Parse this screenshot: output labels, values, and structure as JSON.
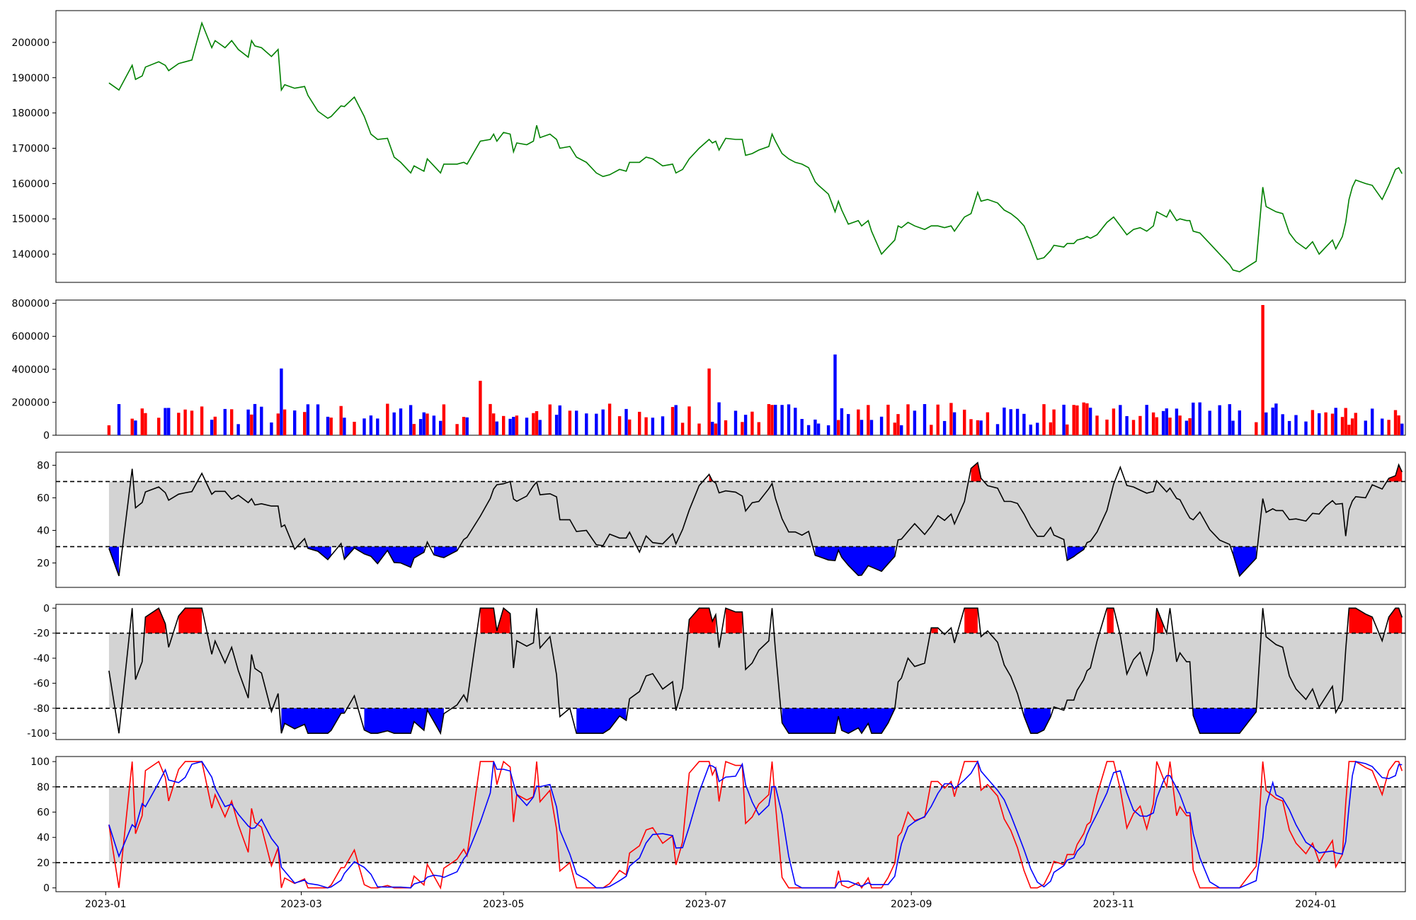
{
  "chart_data": [
    {
      "id": "price",
      "type": "line",
      "color": "#008000",
      "x_range": [
        "2022-12-17",
        "2024-01-28"
      ],
      "ylim": [
        132000,
        209000
      ],
      "yticks": [
        140000,
        150000,
        160000,
        170000,
        180000,
        190000,
        200000
      ],
      "grid": false,
      "series": [
        {
          "values": [
            [
              "2023-01-02",
              188500
            ],
            [
              "2023-01-05",
              186500
            ],
            [
              "2023-01-09",
              193500
            ],
            [
              "2023-01-10",
              189500
            ],
            [
              "2023-01-12",
              190500
            ],
            [
              "2023-01-13",
              193000
            ],
            [
              "2023-01-17",
              194500
            ],
            [
              "2023-01-19",
              193500
            ],
            [
              "2023-01-20",
              192000
            ],
            [
              "2023-01-23",
              194000
            ],
            [
              "2023-01-25",
              194500
            ],
            [
              "2023-01-27",
              195000
            ],
            [
              "2023-01-30",
              205500
            ],
            [
              "2023-02-02",
              198500
            ],
            [
              "2023-02-03",
              200500
            ],
            [
              "2023-02-06",
              198500
            ],
            [
              "2023-02-08",
              200500
            ],
            [
              "2023-02-10",
              198000
            ],
            [
              "2023-02-13",
              195800
            ],
            [
              "2023-02-14",
              200500
            ],
            [
              "2023-02-15",
              199000
            ],
            [
              "2023-02-17",
              198500
            ],
            [
              "2023-02-20",
              196000
            ],
            [
              "2023-02-22",
              198000
            ],
            [
              "2023-02-23",
              186500
            ],
            [
              "2023-02-24",
              188000
            ],
            [
              "2023-02-27",
              187000
            ],
            [
              "2023-03-02",
              187500
            ],
            [
              "2023-03-03",
              185000
            ],
            [
              "2023-03-06",
              180500
            ],
            [
              "2023-03-09",
              178500
            ],
            [
              "2023-03-10",
              179000
            ],
            [
              "2023-03-13",
              182000
            ],
            [
              "2023-03-14",
              181800
            ],
            [
              "2023-03-17",
              184500
            ],
            [
              "2023-03-20",
              179000
            ],
            [
              "2023-03-22",
              174000
            ],
            [
              "2023-03-24",
              172500
            ],
            [
              "2023-03-27",
              172800
            ],
            [
              "2023-03-29",
              167500
            ],
            [
              "2023-03-31",
              166000
            ],
            [
              "2023-04-03",
              163000
            ],
            [
              "2023-04-04",
              165000
            ],
            [
              "2023-04-06",
              164000
            ],
            [
              "2023-04-07",
              163500
            ],
            [
              "2023-04-08",
              167000
            ],
            [
              "2023-04-10",
              165000
            ],
            [
              "2023-04-12",
              163000
            ],
            [
              "2023-04-13",
              165500
            ],
            [
              "2023-04-17",
              165500
            ],
            [
              "2023-04-19",
              166000
            ],
            [
              "2023-04-20",
              165500
            ],
            [
              "2023-04-24",
              172000
            ],
            [
              "2023-04-27",
              172500
            ],
            [
              "2023-04-28",
              174000
            ],
            [
              "2023-04-29",
              172000
            ],
            [
              "2023-05-01",
              174500
            ],
            [
              "2023-05-03",
              174000
            ],
            [
              "2023-05-04",
              169000
            ],
            [
              "2023-05-05",
              171500
            ],
            [
              "2023-05-08",
              171000
            ],
            [
              "2023-05-10",
              172000
            ],
            [
              "2023-05-11",
              176500
            ],
            [
              "2023-05-12",
              173000
            ],
            [
              "2023-05-15",
              174000
            ],
            [
              "2023-05-17",
              172500
            ],
            [
              "2023-05-18",
              170000
            ],
            [
              "2023-05-21",
              170500
            ],
            [
              "2023-05-23",
              167500
            ],
            [
              "2023-05-26",
              166000
            ],
            [
              "2023-05-29",
              163000
            ],
            [
              "2023-05-31",
              162000
            ],
            [
              "2023-06-02",
              162500
            ],
            [
              "2023-06-05",
              164000
            ],
            [
              "2023-06-07",
              163500
            ],
            [
              "2023-06-08",
              166000
            ],
            [
              "2023-06-11",
              166000
            ],
            [
              "2023-06-13",
              167500
            ],
            [
              "2023-06-15",
              167000
            ],
            [
              "2023-06-18",
              165000
            ],
            [
              "2023-06-21",
              165500
            ],
            [
              "2023-06-22",
              163000
            ],
            [
              "2023-06-24",
              164000
            ],
            [
              "2023-06-26",
              167000
            ],
            [
              "2023-06-29",
              170000
            ],
            [
              "2023-07-02",
              172500
            ],
            [
              "2023-07-03",
              171500
            ],
            [
              "2023-07-04",
              172000
            ],
            [
              "2023-07-05",
              169500
            ],
            [
              "2023-07-07",
              172800
            ],
            [
              "2023-07-10",
              172500
            ],
            [
              "2023-07-12",
              172500
            ],
            [
              "2023-07-13",
              168000
            ],
            [
              "2023-07-15",
              168500
            ],
            [
              "2023-07-17",
              169500
            ],
            [
              "2023-07-20",
              170500
            ],
            [
              "2023-07-21",
              174000
            ],
            [
              "2023-07-22",
              172000
            ],
            [
              "2023-07-24",
              168500
            ],
            [
              "2023-07-26",
              167000
            ],
            [
              "2023-07-28",
              166000
            ],
            [
              "2023-07-30",
              165500
            ],
            [
              "2023-08-01",
              164500
            ],
            [
              "2023-08-03",
              160500
            ],
            [
              "2023-08-04",
              159500
            ],
            [
              "2023-08-07",
              157000
            ],
            [
              "2023-08-09",
              152000
            ],
            [
              "2023-08-10",
              155000
            ],
            [
              "2023-08-11",
              152500
            ],
            [
              "2023-08-13",
              148500
            ],
            [
              "2023-08-16",
              149500
            ],
            [
              "2023-08-17",
              148000
            ],
            [
              "2023-08-19",
              149500
            ],
            [
              "2023-08-20",
              146500
            ],
            [
              "2023-08-23",
              140000
            ],
            [
              "2023-08-25",
              142000
            ],
            [
              "2023-08-27",
              144000
            ],
            [
              "2023-08-28",
              148000
            ],
            [
              "2023-08-29",
              147500
            ],
            [
              "2023-08-31",
              149000
            ],
            [
              "2023-09-02",
              148000
            ],
            [
              "2023-09-05",
              147000
            ],
            [
              "2023-09-07",
              148000
            ],
            [
              "2023-09-09",
              148000
            ],
            [
              "2023-09-11",
              147500
            ],
            [
              "2023-09-13",
              148000
            ],
            [
              "2023-09-14",
              146500
            ],
            [
              "2023-09-17",
              150500
            ],
            [
              "2023-09-19",
              151500
            ],
            [
              "2023-09-21",
              157500
            ],
            [
              "2023-09-22",
              155000
            ],
            [
              "2023-09-24",
              155500
            ],
            [
              "2023-09-27",
              154500
            ],
            [
              "2023-09-29",
              152500
            ],
            [
              "2023-10-01",
              151500
            ],
            [
              "2023-10-03",
              150000
            ],
            [
              "2023-10-05",
              148000
            ],
            [
              "2023-10-07",
              143500
            ],
            [
              "2023-10-09",
              138500
            ],
            [
              "2023-10-11",
              139000
            ],
            [
              "2023-10-13",
              141000
            ],
            [
              "2023-10-14",
              142500
            ],
            [
              "2023-10-17",
              142000
            ],
            [
              "2023-10-18",
              143000
            ],
            [
              "2023-10-20",
              143000
            ],
            [
              "2023-10-21",
              144000
            ],
            [
              "2023-10-23",
              144500
            ],
            [
              "2023-10-24",
              145000
            ],
            [
              "2023-10-25",
              144500
            ],
            [
              "2023-10-27",
              145500
            ],
            [
              "2023-10-30",
              149000
            ],
            [
              "2023-11-01",
              150500
            ],
            [
              "2023-11-03",
              148000
            ],
            [
              "2023-11-05",
              145500
            ],
            [
              "2023-11-07",
              147000
            ],
            [
              "2023-11-09",
              147500
            ],
            [
              "2023-11-11",
              146500
            ],
            [
              "2023-11-13",
              148000
            ],
            [
              "2023-11-14",
              152000
            ],
            [
              "2023-11-16",
              151000
            ],
            [
              "2023-11-17",
              150500
            ],
            [
              "2023-11-18",
              152500
            ],
            [
              "2023-11-20",
              149500
            ],
            [
              "2023-11-21",
              150000
            ],
            [
              "2023-11-23",
              149500
            ],
            [
              "2023-11-24",
              149500
            ],
            [
              "2023-11-25",
              146500
            ],
            [
              "2023-11-27",
              146000
            ],
            [
              "2023-11-30",
              143000
            ],
            [
              "2023-12-03",
              140000
            ],
            [
              "2023-12-06",
              137000
            ],
            [
              "2023-12-07",
              135500
            ],
            [
              "2023-12-09",
              135000
            ],
            [
              "2023-12-14",
              138000
            ],
            [
              "2023-12-16",
              159000
            ],
            [
              "2023-12-17",
              153500
            ],
            [
              "2023-12-19",
              152500
            ],
            [
              "2023-12-20",
              152000
            ],
            [
              "2023-12-22",
              151500
            ],
            [
              "2023-12-24",
              146000
            ],
            [
              "2023-12-26",
              143500
            ],
            [
              "2023-12-29",
              141500
            ],
            [
              "2023-12-31",
              143500
            ],
            [
              "2024-01-02",
              140000
            ],
            [
              "2024-01-04",
              142000
            ],
            [
              "2024-01-06",
              144000
            ],
            [
              "2024-01-07",
              141500
            ],
            [
              "2024-01-09",
              145000
            ],
            [
              "2024-01-10",
              149000
            ],
            [
              "2024-01-11",
              155500
            ],
            [
              "2024-01-12",
              159000
            ],
            [
              "2024-01-13",
              161000
            ],
            [
              "2024-01-16",
              160000
            ],
            [
              "2024-01-18",
              159500
            ],
            [
              "2024-01-21",
              155500
            ],
            [
              "2024-01-23",
              159500
            ],
            [
              "2024-01-25",
              164000
            ],
            [
              "2024-01-26",
              164500
            ],
            [
              "2024-01-27",
              162800
            ]
          ]
        }
      ],
      "x_ticks": [
        "2023-01",
        "2023-03",
        "2023-05",
        "2023-07",
        "2023-09",
        "2023-11",
        "2024-01"
      ]
    }
  ]
}
